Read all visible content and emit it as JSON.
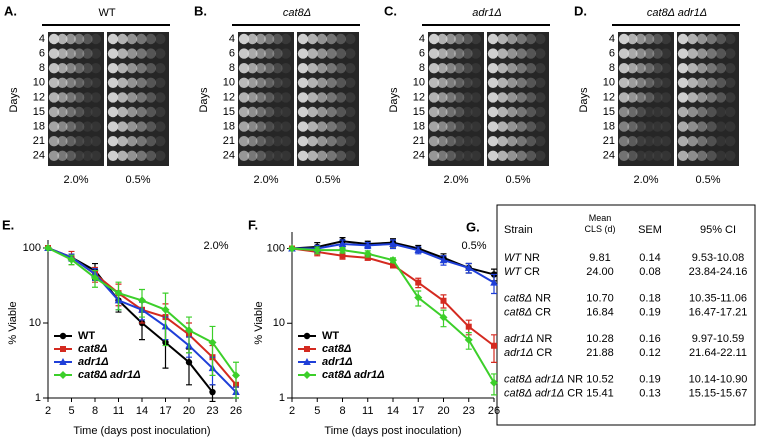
{
  "panels": [
    {
      "label": "A.",
      "title": "WT",
      "ylabel": "Days",
      "days": [
        "4",
        "6",
        "8",
        "10",
        "12",
        "15",
        "18",
        "21",
        "24"
      ],
      "columns": [
        "2.0%",
        "0.5%"
      ]
    },
    {
      "label": "B.",
      "title": "cat8Δ",
      "ylabel": "Days",
      "days": [
        "4",
        "6",
        "8",
        "10",
        "12",
        "15",
        "18",
        "21",
        "24"
      ],
      "columns": [
        "2.0%",
        "0.5%"
      ]
    },
    {
      "label": "C.",
      "title": "adr1Δ",
      "ylabel": "Days",
      "days": [
        "4",
        "6",
        "8",
        "10",
        "12",
        "15",
        "18",
        "21",
        "24"
      ],
      "columns": [
        "2.0%",
        "0.5%"
      ]
    },
    {
      "label": "D.",
      "title": "cat8Δ adr1Δ",
      "ylabel": "Days",
      "days": [
        "4",
        "6",
        "8",
        "10",
        "12",
        "15",
        "18",
        "21",
        "24"
      ],
      "columns": [
        "2.0%",
        "0.5%"
      ]
    }
  ],
  "chart_data": [
    {
      "type": "line",
      "label": "E.",
      "title": "2.0%",
      "xlabel": "Time (days post inoculation)",
      "ylabel": "% Viable",
      "x": [
        2,
        5,
        8,
        11,
        14,
        17,
        20,
        23,
        26
      ],
      "xlim": [
        2,
        26
      ],
      "xticks": [
        2,
        5,
        8,
        11,
        14,
        17,
        20,
        23,
        26
      ],
      "ylog": true,
      "ylim": [
        1,
        100
      ],
      "yticks": [
        1,
        10,
        100
      ],
      "legend": "lower left",
      "series": [
        {
          "name": "WT",
          "color": "#000000",
          "marker": "circle",
          "values": [
            100,
            75,
            50,
            20,
            10,
            5.5,
            3,
            1.2,
            null
          ],
          "errors": [
            0,
            8,
            12,
            6,
            4,
            3,
            1.5,
            0.3,
            null
          ]
        },
        {
          "name": "cat8Δ",
          "color": "#d42a20",
          "marker": "square",
          "values": [
            100,
            75,
            45,
            25,
            15,
            12,
            7,
            3.5,
            1.5
          ],
          "errors": [
            0,
            15,
            10,
            8,
            5,
            6,
            3,
            1.5,
            0.5
          ]
        },
        {
          "name": "adr1Δ",
          "color": "#1f3fd8",
          "marker": "triangle",
          "values": [
            100,
            75,
            45,
            20,
            15,
            9,
            5,
            2.5,
            1.2
          ],
          "errors": [
            0,
            8,
            8,
            5,
            4,
            3,
            1.5,
            1,
            0.2
          ]
        },
        {
          "name": "cat8Δ adr1Δ",
          "color": "#3ccf2a",
          "marker": "diamond",
          "values": [
            100,
            70,
            40,
            25,
            20,
            15,
            8,
            5.5,
            2
          ],
          "errors": [
            0,
            10,
            10,
            10,
            8,
            10,
            4,
            3.5,
            1
          ]
        }
      ]
    },
    {
      "type": "line",
      "label": "F.",
      "title": "0.5%",
      "xlabel": "Time (days post inoculation)",
      "ylabel": "% Viable",
      "x": [
        2,
        5,
        8,
        11,
        14,
        17,
        20,
        23,
        26
      ],
      "xlim": [
        2,
        26
      ],
      "xticks": [
        2,
        5,
        8,
        11,
        14,
        17,
        20,
        23,
        26
      ],
      "ylog": true,
      "ylim": [
        1,
        130
      ],
      "yticks": [
        1,
        10,
        100
      ],
      "legend": "lower left",
      "series": [
        {
          "name": "WT",
          "color": "#000000",
          "marker": "circle",
          "values": [
            100,
            105,
            125,
            115,
            120,
            100,
            75,
            55,
            45
          ],
          "errors": [
            0,
            15,
            15,
            10,
            15,
            10,
            10,
            8,
            8
          ]
        },
        {
          "name": "cat8Δ",
          "color": "#d42a20",
          "marker": "square",
          "values": [
            100,
            90,
            80,
            75,
            60,
            35,
            20,
            9,
            5
          ],
          "errors": [
            0,
            10,
            8,
            5,
            5,
            5,
            4,
            2,
            2
          ]
        },
        {
          "name": "adr1Δ",
          "color": "#1f3fd8",
          "marker": "triangle",
          "values": [
            100,
            100,
            115,
            110,
            115,
            95,
            70,
            55,
            35
          ],
          "errors": [
            0,
            10,
            15,
            10,
            15,
            10,
            10,
            8,
            10
          ]
        },
        {
          "name": "cat8Δ adr1Δ",
          "color": "#3ccf2a",
          "marker": "diamond",
          "values": [
            100,
            95,
            95,
            85,
            70,
            22,
            12,
            6,
            1.6
          ],
          "errors": [
            0,
            10,
            8,
            8,
            5,
            5,
            3,
            1.5,
            0.5
          ]
        }
      ]
    }
  ],
  "table": {
    "label": "G.",
    "header": [
      "Strain",
      "Mean\nCLS (d)",
      "SEM",
      "95% CI"
    ],
    "rows": [
      {
        "strain": "WT",
        "condition": "NR",
        "mean": "9.81",
        "sem": "0.14",
        "ci": "9.53-10.08"
      },
      {
        "strain": "WT",
        "condition": "CR",
        "mean": "24.00",
        "sem": "0.08",
        "ci": "23.84-24.16"
      },
      {
        "strain": "cat8Δ",
        "condition": "NR",
        "mean": "10.70",
        "sem": "0.18",
        "ci": "10.35-11.06"
      },
      {
        "strain": "cat8Δ",
        "condition": "CR",
        "mean": "16.84",
        "sem": "0.19",
        "ci": "16.47-17.21"
      },
      {
        "strain": "adr1Δ",
        "condition": "NR",
        "mean": "10.28",
        "sem": "0.16",
        "ci": "9.97-10.59"
      },
      {
        "strain": "adr1Δ",
        "condition": "CR",
        "mean": "21.88",
        "sem": "0.12",
        "ci": "21.64-22.11"
      },
      {
        "strain": "cat8Δ adr1Δ",
        "condition": "NR",
        "mean": "10.52",
        "sem": "0.19",
        "ci": "10.14-10.90"
      },
      {
        "strain": "cat8Δ adr1Δ",
        "condition": "CR",
        "mean": "15.41",
        "sem": "0.13",
        "ci": "15.15-15.67"
      }
    ]
  }
}
